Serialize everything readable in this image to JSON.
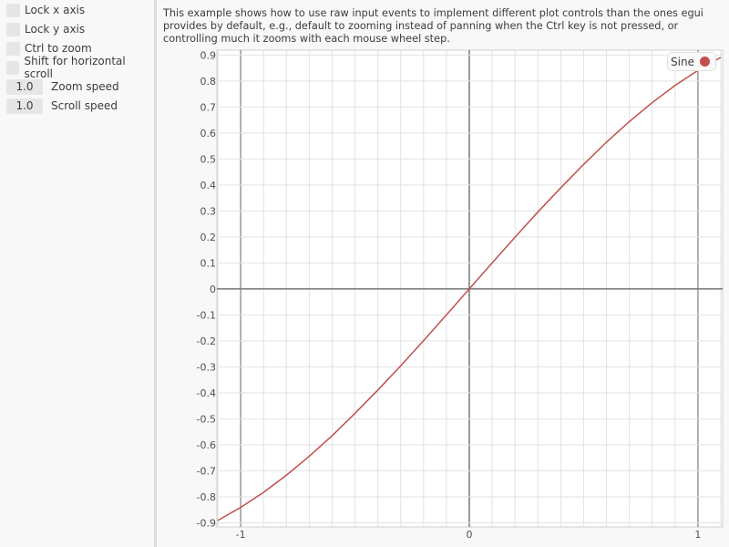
{
  "sidebar": {
    "checkboxes": [
      {
        "label": "Lock x axis",
        "checked": false
      },
      {
        "label": "Lock y axis",
        "checked": false
      },
      {
        "label": "Ctrl to zoom",
        "checked": false
      },
      {
        "label": "Shift for horizontal scroll",
        "checked": false
      }
    ],
    "drag_values": [
      {
        "value": "1.0",
        "label": "Zoom speed"
      },
      {
        "value": "1.0",
        "label": "Scroll speed"
      }
    ]
  },
  "description": "This example shows how to use raw input events to implement different plot controls than the ones egui provides by default, e.g., default to zooming instead of panning when the Ctrl key is not pressed, or controlling much it zooms with each mouse wheel step.",
  "chart_data": {
    "type": "line",
    "xlim": [
      -1.104,
      1.108
    ],
    "ylim": [
      -0.916,
      0.919
    ],
    "x_ticks": [
      "-1",
      "0",
      "1"
    ],
    "y_ticks": [
      "0.9",
      "0.8",
      "0.7",
      "0.6",
      "0.5",
      "0.4",
      "0.3",
      "0.2",
      "0.1",
      "0",
      "-0.1",
      "-0.2",
      "-0.3",
      "-0.4",
      "-0.5",
      "-0.6",
      "-0.7",
      "-0.8",
      "-0.9"
    ],
    "grid": true,
    "legend": "top-right",
    "series": [
      {
        "name": "Sine",
        "color": "#c0504d",
        "x": [
          -1.1,
          -1.0,
          -0.9,
          -0.8,
          -0.7,
          -0.6,
          -0.5,
          -0.4,
          -0.3,
          -0.2,
          -0.1,
          0,
          0.1,
          0.2,
          0.3,
          0.4,
          0.5,
          0.6,
          0.7,
          0.8,
          0.9,
          1.0,
          1.1
        ],
        "y": [
          -0.891,
          -0.841,
          -0.783,
          -0.717,
          -0.644,
          -0.565,
          -0.479,
          -0.389,
          -0.296,
          -0.199,
          -0.1,
          0,
          0.1,
          0.199,
          0.296,
          0.389,
          0.479,
          0.565,
          0.644,
          0.717,
          0.783,
          0.841,
          0.891
        ]
      }
    ]
  }
}
